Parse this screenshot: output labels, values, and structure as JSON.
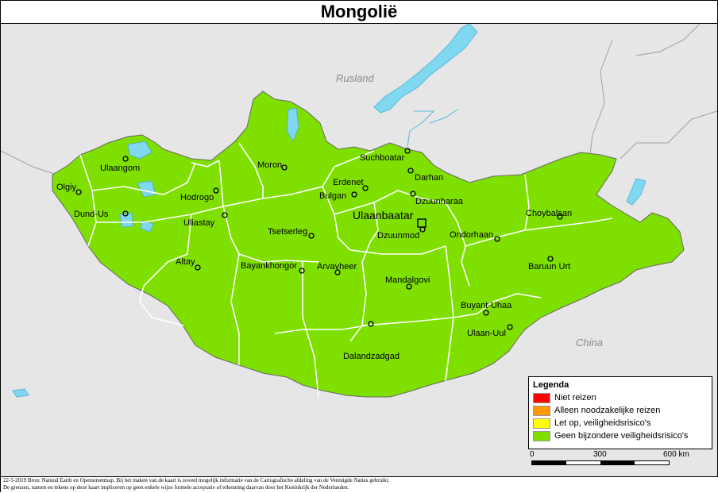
{
  "title": "Mongolië",
  "neighbors": [
    "Rusland",
    "China"
  ],
  "capital": "Ulaanbaatar",
  "cities": [
    "Ulaangom",
    "Olgiy",
    "Dund-Us",
    "Hodrogo",
    "Uliastay",
    "Moron",
    "Suchboatar",
    "Darhan",
    "Erdenet",
    "Bulgan",
    "Dzuunharaa",
    "Choybalsan",
    "Tsetserleg",
    "Dzuunmod",
    "Ondorhaan",
    "Altay",
    "Bayankhongor",
    "Arvayheer",
    "Baruun Urt",
    "Mandalgovi",
    "Buyant-Uhaa",
    "Ulaan-Uul",
    "Dalandzadgad"
  ],
  "colors": {
    "country_fill": "#7fe000",
    "water": "#80d8f0",
    "background": "#e6e6e6",
    "borders": "#ffffff"
  },
  "legend": {
    "title": "Legenda",
    "items": [
      {
        "label": "Niet reizen",
        "color": "#ff0000"
      },
      {
        "label": "Alleen noodzakelijke reizen",
        "color": "#ff9900"
      },
      {
        "label": "Let op, veiligheidsrisico's",
        "color": "#ffff00"
      },
      {
        "label": "Geen bijzondere veiligheidsrisico's",
        "color": "#7fe000"
      }
    ]
  },
  "scale": {
    "labels": [
      "0",
      "300",
      "600 km"
    ]
  },
  "footer": {
    "line1": "22-5-2019 Bron: Natural Earth en Openstreetmap. Bij het maken van de kaart is zoveel mogelijk informatie van de Cartografische afdeling van de Verenigde Naties gebruikt.",
    "line2": "De grenzen, namen en tekens op deze kaart impliceren op geen enkele wijze formele acceptatie of erkenning daarvan door het Koninkrijk der Nederlanden."
  }
}
